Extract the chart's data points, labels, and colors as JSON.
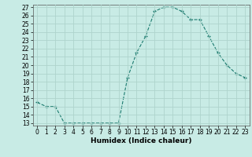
{
  "x": [
    0,
    1,
    2,
    3,
    4,
    5,
    6,
    7,
    8,
    9,
    10,
    11,
    12,
    13,
    14,
    15,
    16,
    17,
    18,
    19,
    20,
    21,
    22,
    23
  ],
  "y": [
    15.5,
    15.0,
    15.0,
    13.0,
    13.0,
    13.0,
    13.0,
    13.0,
    13.0,
    13.0,
    18.5,
    21.5,
    23.5,
    26.5,
    27.0,
    27.0,
    26.5,
    25.5,
    25.5,
    23.5,
    21.5,
    20.0,
    19.0,
    18.5
  ],
  "xlabel": "Humidex (Indice chaleur)",
  "ylim_min": 13,
  "ylim_max": 27,
  "xlim_min": -0.5,
  "xlim_max": 23.5,
  "yticks": [
    13,
    14,
    15,
    16,
    17,
    18,
    19,
    20,
    21,
    22,
    23,
    24,
    25,
    26,
    27
  ],
  "xticks": [
    0,
    1,
    2,
    3,
    4,
    5,
    6,
    7,
    8,
    9,
    10,
    11,
    12,
    13,
    14,
    15,
    16,
    17,
    18,
    19,
    20,
    21,
    22,
    23
  ],
  "xtick_labels": [
    "0",
    "1",
    "2",
    "3",
    "4",
    "5",
    "6",
    "7",
    "8",
    "9",
    "10",
    "11",
    "12",
    "13",
    "14",
    "15",
    "16",
    "17",
    "18",
    "19",
    "20",
    "21",
    "22",
    "23"
  ],
  "line_color": "#1a7a6e",
  "marker": "+",
  "bg_color": "#c8ebe5",
  "grid_color": "#aed4cc",
  "xlabel_fontsize": 6.5,
  "tick_fontsize": 5.5
}
